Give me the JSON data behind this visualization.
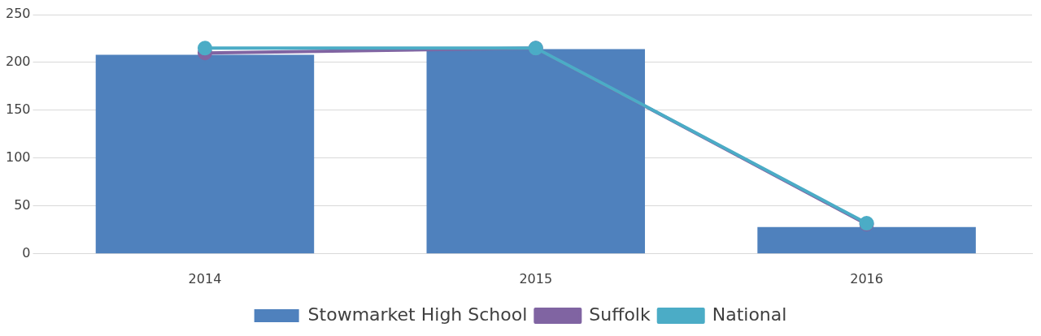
{
  "chart_data": {
    "type": "bar",
    "categories": [
      "2014",
      "2015",
      "2016"
    ],
    "series": [
      {
        "name": "Stowmarket High School",
        "color": "#4f81bd",
        "values": [
          208,
          214,
          28
        ]
      },
      {
        "name": "Suffolk",
        "type": "line",
        "color": "#8064a2",
        "values": [
          210,
          215,
          31
        ]
      },
      {
        "name": "National",
        "type": "line",
        "color": "#4bacc6",
        "values": [
          215,
          215,
          32
        ]
      }
    ],
    "ylim": [
      0,
      250
    ],
    "yticks": [
      0,
      50,
      100,
      150,
      200,
      250
    ],
    "grid": "y",
    "legend": "bottom",
    "marker": "circle"
  }
}
